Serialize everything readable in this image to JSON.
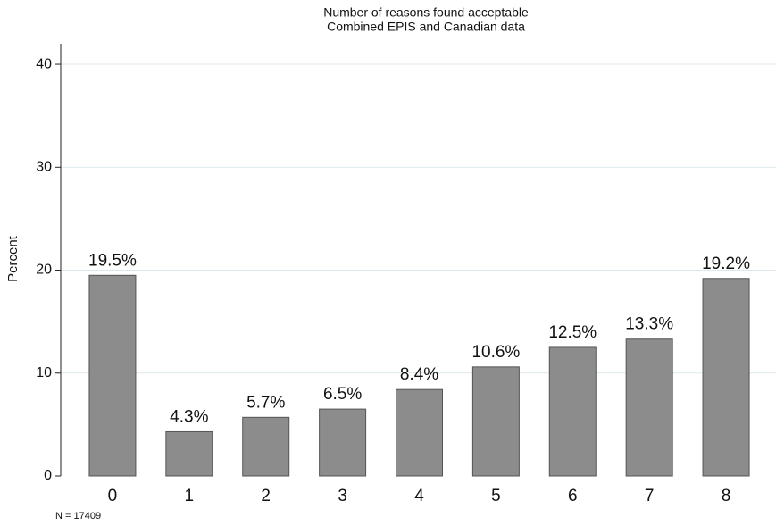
{
  "chart_data": {
    "type": "bar",
    "title": "Number of reasons found acceptable",
    "subtitle": "Combined EPIS and Canadian data",
    "y_label": "Percent",
    "note": "N = 17409",
    "categories": [
      "0",
      "1",
      "2",
      "3",
      "4",
      "5",
      "6",
      "7",
      "8"
    ],
    "values": [
      19.5,
      4.3,
      5.7,
      6.5,
      8.4,
      10.6,
      12.5,
      13.3,
      19.2
    ],
    "value_labels": [
      "19.5%",
      "4.3%",
      "5.7%",
      "6.5%",
      "8.4%",
      "10.6%",
      "12.5%",
      "13.3%",
      "19.2%"
    ],
    "color": "#8c8c8c",
    "ylim": [
      0,
      42
    ],
    "yticks": [
      0,
      10,
      20,
      30,
      40
    ],
    "grid": true
  }
}
